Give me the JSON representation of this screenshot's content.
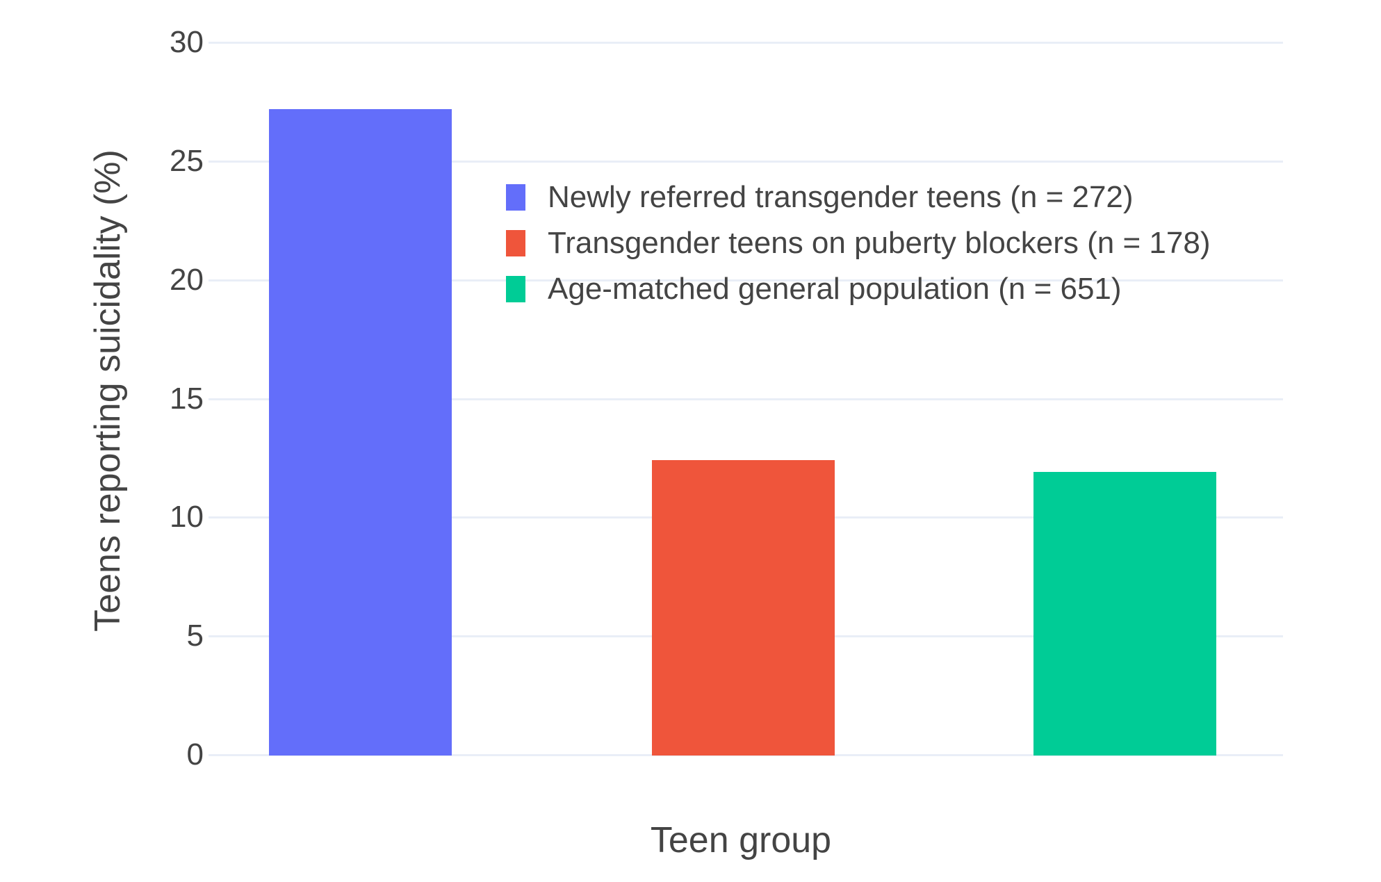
{
  "chart_data": {
    "type": "bar",
    "title": "",
    "xlabel": "Teen group",
    "ylabel": "Teens reporting suicidality (%)",
    "categories": [
      "Newly referred transgender teens (n = 272)",
      "Transgender teens on puberty blockers (n = 178)",
      "Age-matched general population (n = 651)"
    ],
    "values": [
      27.2,
      12.4,
      11.9
    ],
    "bar_colors": [
      "#636EFA",
      "#EF553B",
      "#00CC96"
    ],
    "ylim": [
      0,
      30
    ],
    "yticks": [
      "0",
      "5",
      "10",
      "15",
      "20",
      "25",
      "30"
    ],
    "grid": true,
    "legend_position": "inside top-left of plot",
    "legend": [
      {
        "label": "Newly referred transgender teens (n = 272)",
        "color": "#636EFA"
      },
      {
        "label": "Transgender teens on puberty blockers (n = 178)",
        "color": "#EF553B"
      },
      {
        "label": "Age-matched general population (n = 651)",
        "color": "#00CC96"
      }
    ]
  },
  "colors": {
    "background": "#FFFFFF",
    "grid": "#E9EEF7",
    "text": "#444444"
  }
}
